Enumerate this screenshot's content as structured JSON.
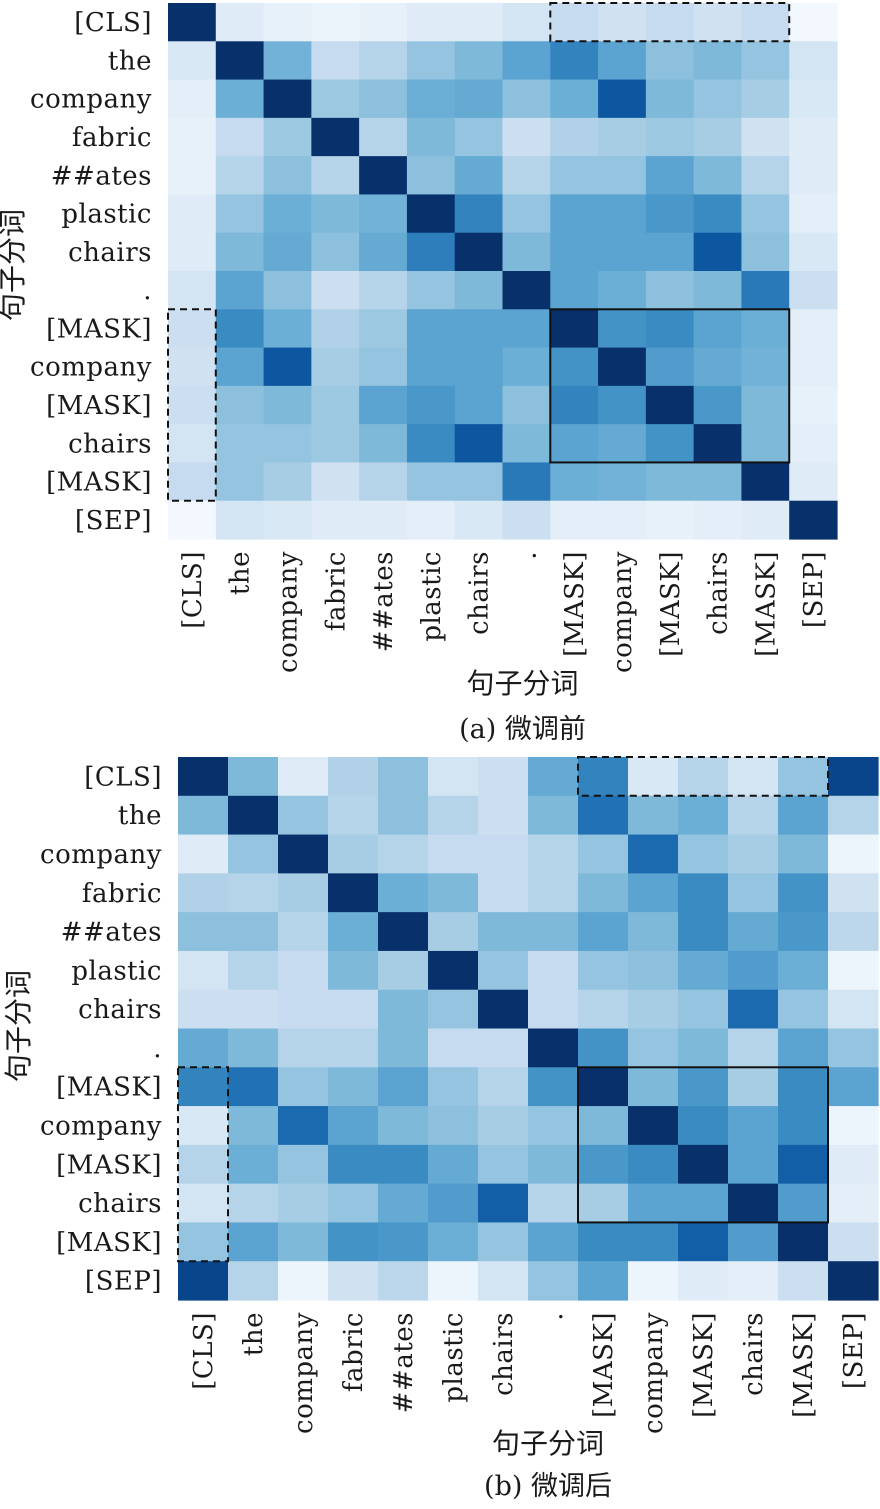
{
  "tokens": [
    "[CLS]",
    "the",
    "company",
    "fabric",
    "##ates",
    "plastic",
    "chairs",
    ".",
    "[MASK]",
    "company",
    "[MASK]",
    "chairs",
    "[MASK]",
    "[SEP]"
  ],
  "color_scale": {
    "low": "#f7fbff",
    "high": "#08306b",
    "mid": "#6aaed6"
  },
  "chart_data": [
    {
      "type": "heatmap",
      "caption": "(a) 微调前",
      "xlabel": "句子分词",
      "ylabel": "句子分词",
      "x": [
        "[CLS]",
        "the",
        "company",
        "fabric",
        "##ates",
        "plastic",
        "chairs",
        ".",
        "[MASK]",
        "company",
        "[MASK]",
        "chairs",
        "[MASK]",
        "[SEP]"
      ],
      "y": [
        "[CLS]",
        "the",
        "company",
        "fabric",
        "##ates",
        "plastic",
        "chairs",
        ".",
        "[MASK]",
        "company",
        "[MASK]",
        "chairs",
        "[MASK]",
        "[SEP]"
      ],
      "values": [
        [
          1.0,
          0.12,
          0.08,
          0.06,
          0.08,
          0.12,
          0.12,
          0.18,
          0.25,
          0.2,
          0.25,
          0.2,
          0.25,
          0.02
        ],
        [
          0.15,
          1.0,
          0.48,
          0.25,
          0.3,
          0.4,
          0.45,
          0.55,
          0.68,
          0.55,
          0.42,
          0.45,
          0.4,
          0.18
        ],
        [
          0.1,
          0.5,
          1.0,
          0.38,
          0.42,
          0.5,
          0.52,
          0.42,
          0.5,
          0.85,
          0.45,
          0.4,
          0.35,
          0.15
        ],
        [
          0.08,
          0.25,
          0.38,
          1.0,
          0.3,
          0.45,
          0.4,
          0.22,
          0.32,
          0.35,
          0.38,
          0.35,
          0.2,
          0.12
        ],
        [
          0.08,
          0.3,
          0.42,
          0.3,
          1.0,
          0.42,
          0.52,
          0.3,
          0.4,
          0.4,
          0.55,
          0.45,
          0.3,
          0.12
        ],
        [
          0.12,
          0.4,
          0.5,
          0.45,
          0.48,
          1.0,
          0.68,
          0.4,
          0.55,
          0.55,
          0.6,
          0.65,
          0.4,
          0.1
        ],
        [
          0.12,
          0.45,
          0.52,
          0.42,
          0.52,
          0.7,
          1.0,
          0.45,
          0.55,
          0.55,
          0.55,
          0.85,
          0.42,
          0.15
        ],
        [
          0.18,
          0.55,
          0.42,
          0.22,
          0.3,
          0.4,
          0.45,
          1.0,
          0.55,
          0.5,
          0.42,
          0.45,
          0.72,
          0.22
        ],
        [
          0.22,
          0.65,
          0.5,
          0.32,
          0.38,
          0.55,
          0.55,
          0.55,
          1.0,
          0.62,
          0.65,
          0.55,
          0.5,
          0.1
        ],
        [
          0.2,
          0.55,
          0.85,
          0.35,
          0.4,
          0.55,
          0.55,
          0.5,
          0.62,
          1.0,
          0.58,
          0.52,
          0.48,
          0.1
        ],
        [
          0.22,
          0.42,
          0.45,
          0.38,
          0.55,
          0.6,
          0.55,
          0.42,
          0.68,
          0.62,
          1.0,
          0.6,
          0.45,
          0.08
        ],
        [
          0.18,
          0.4,
          0.4,
          0.38,
          0.45,
          0.65,
          0.85,
          0.45,
          0.55,
          0.52,
          0.62,
          1.0,
          0.45,
          0.1
        ],
        [
          0.25,
          0.4,
          0.35,
          0.2,
          0.3,
          0.4,
          0.4,
          0.72,
          0.5,
          0.48,
          0.45,
          0.45,
          1.0,
          0.12
        ],
        [
          0.02,
          0.18,
          0.15,
          0.12,
          0.12,
          0.1,
          0.15,
          0.22,
          0.1,
          0.1,
          0.08,
          0.1,
          0.12,
          1.0
        ]
      ],
      "highlights": [
        {
          "style": "dashed",
          "rows": [
            0,
            0
          ],
          "cols": [
            8,
            12
          ]
        },
        {
          "style": "solid",
          "rows": [
            8,
            11
          ],
          "cols": [
            8,
            12
          ]
        },
        {
          "style": "dashed",
          "rows": [
            8,
            12
          ],
          "cols": [
            0,
            0
          ]
        }
      ]
    },
    {
      "type": "heatmap",
      "caption": "(b) 微调后",
      "xlabel": "句子分词",
      "ylabel": "句子分词",
      "x": [
        "[CLS]",
        "the",
        "company",
        "fabric",
        "##ates",
        "plastic",
        "chairs",
        ".",
        "[MASK]",
        "company",
        "[MASK]",
        "chairs",
        "[MASK]",
        "[SEP]"
      ],
      "y": [
        "[CLS]",
        "the",
        "company",
        "fabric",
        "##ates",
        "plastic",
        "chairs",
        ".",
        "[MASK]",
        "company",
        "[MASK]",
        "chairs",
        "[MASK]",
        "[SEP]"
      ],
      "values": [
        [
          1.0,
          0.45,
          0.12,
          0.32,
          0.42,
          0.18,
          0.22,
          0.52,
          0.68,
          0.15,
          0.3,
          0.18,
          0.4,
          0.92
        ],
        [
          0.45,
          1.0,
          0.4,
          0.3,
          0.42,
          0.3,
          0.22,
          0.45,
          0.75,
          0.45,
          0.5,
          0.3,
          0.55,
          0.3
        ],
        [
          0.12,
          0.4,
          1.0,
          0.35,
          0.3,
          0.25,
          0.25,
          0.3,
          0.4,
          0.78,
          0.4,
          0.35,
          0.45,
          0.05
        ],
        [
          0.32,
          0.3,
          0.35,
          1.0,
          0.5,
          0.45,
          0.25,
          0.3,
          0.45,
          0.55,
          0.65,
          0.4,
          0.62,
          0.2
        ],
        [
          0.42,
          0.42,
          0.3,
          0.5,
          1.0,
          0.35,
          0.45,
          0.45,
          0.55,
          0.45,
          0.65,
          0.52,
          0.6,
          0.28
        ],
        [
          0.18,
          0.3,
          0.25,
          0.45,
          0.35,
          1.0,
          0.4,
          0.25,
          0.4,
          0.42,
          0.52,
          0.58,
          0.5,
          0.05
        ],
        [
          0.22,
          0.22,
          0.25,
          0.25,
          0.45,
          0.4,
          1.0,
          0.25,
          0.3,
          0.35,
          0.4,
          0.78,
          0.4,
          0.18
        ],
        [
          0.52,
          0.45,
          0.3,
          0.3,
          0.45,
          0.25,
          0.25,
          1.0,
          0.62,
          0.4,
          0.45,
          0.3,
          0.55,
          0.4
        ],
        [
          0.68,
          0.75,
          0.4,
          0.45,
          0.55,
          0.4,
          0.3,
          0.62,
          1.0,
          0.45,
          0.6,
          0.35,
          0.65,
          0.55
        ],
        [
          0.15,
          0.45,
          0.78,
          0.55,
          0.45,
          0.42,
          0.35,
          0.4,
          0.45,
          1.0,
          0.65,
          0.55,
          0.65,
          0.05
        ],
        [
          0.3,
          0.5,
          0.4,
          0.65,
          0.65,
          0.52,
          0.4,
          0.45,
          0.6,
          0.65,
          1.0,
          0.55,
          0.82,
          0.12
        ],
        [
          0.18,
          0.3,
          0.35,
          0.4,
          0.52,
          0.58,
          0.82,
          0.3,
          0.35,
          0.55,
          0.55,
          1.0,
          0.58,
          0.1
        ],
        [
          0.4,
          0.55,
          0.45,
          0.62,
          0.6,
          0.5,
          0.4,
          0.55,
          0.65,
          0.65,
          0.82,
          0.58,
          1.0,
          0.22
        ],
        [
          0.92,
          0.3,
          0.05,
          0.2,
          0.28,
          0.05,
          0.18,
          0.4,
          0.55,
          0.05,
          0.12,
          0.1,
          0.22,
          1.0
        ]
      ],
      "highlights": [
        {
          "style": "dashed",
          "rows": [
            0,
            0
          ],
          "cols": [
            8,
            12
          ]
        },
        {
          "style": "solid",
          "rows": [
            8,
            11
          ],
          "cols": [
            8,
            12
          ]
        },
        {
          "style": "dashed",
          "rows": [
            8,
            12
          ],
          "cols": [
            0,
            0
          ]
        }
      ]
    }
  ]
}
